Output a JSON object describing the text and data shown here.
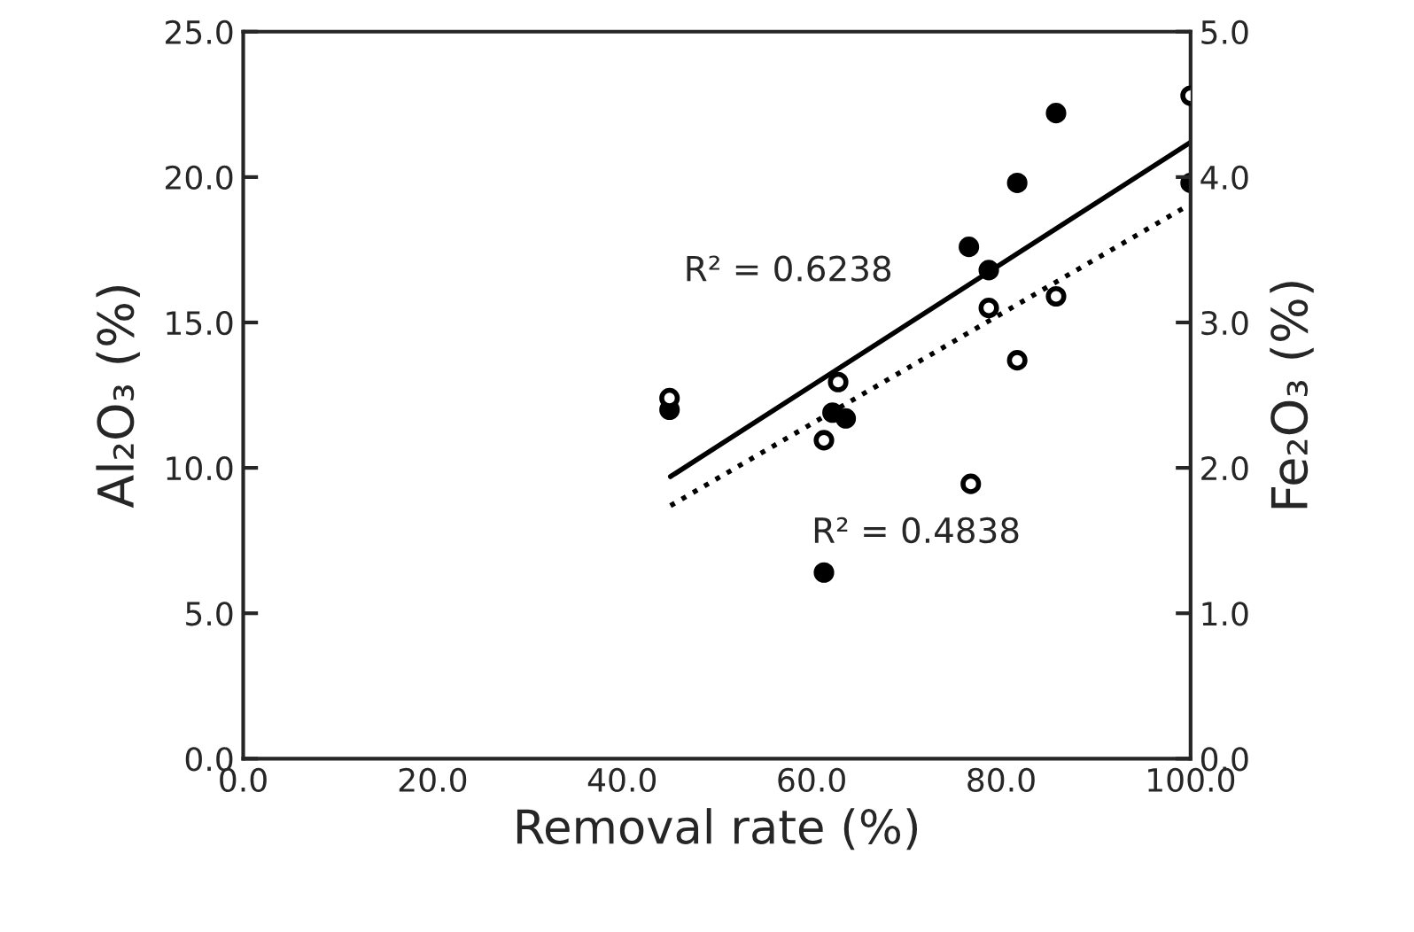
{
  "chart_data": {
    "type": "scatter",
    "xlabel": "Removal rate (%)",
    "ylabel": "Al₂O₃ (%)",
    "y2label": "Fe₂O₃ (%)",
    "xlim": [
      0,
      100
    ],
    "ylim": [
      0,
      25
    ],
    "y2lim": [
      0,
      5
    ],
    "xticks": [
      {
        "value": 0,
        "label": "0.0"
      },
      {
        "value": 20,
        "label": "20.0"
      },
      {
        "value": 40,
        "label": "40.0"
      },
      {
        "value": 60,
        "label": "60.0"
      },
      {
        "value": 80,
        "label": "80.0"
      },
      {
        "value": 100,
        "label": "100.0"
      }
    ],
    "yticks": [
      {
        "value": 0,
        "label": "0.0"
      },
      {
        "value": 5,
        "label": "5.0"
      },
      {
        "value": 10,
        "label": "10.0"
      },
      {
        "value": 15,
        "label": "15.0"
      },
      {
        "value": 20,
        "label": "20.0"
      },
      {
        "value": 25,
        "label": "25.0"
      }
    ],
    "y2ticks": [
      {
        "value": 0,
        "label": "0.0"
      },
      {
        "value": 1,
        "label": "1.0"
      },
      {
        "value": 2,
        "label": "2.0"
      },
      {
        "value": 3,
        "label": "3.0"
      },
      {
        "value": 4,
        "label": "4.0"
      },
      {
        "value": 5,
        "label": "5.0"
      }
    ],
    "grid": false,
    "legend": false,
    "series": [
      {
        "marker": "circle",
        "color": "#000000",
        "x": [
          45.0,
          61.3,
          62.2,
          63.6,
          76.6,
          78.7,
          81.7,
          85.8,
          100
        ],
        "values": [
          12.0,
          6.4,
          11.9,
          11.7,
          17.6,
          16.8,
          19.8,
          22.2,
          19.8
        ]
      },
      {
        "marker": "circle",
        "axis": "y2",
        "color": "#000000",
        "x": [
          45.0,
          62.8,
          61.3,
          76.8,
          78.7,
          81.7,
          85.8,
          100
        ],
        "values": [
          2.48,
          2.59,
          2.19,
          1.89,
          3.1,
          2.74,
          3.18,
          4.56
        ]
      },
      {
        "type": "line",
        "marker": "none",
        "color": "#000000",
        "line_style": "solid",
        "x": [
          45.1,
          100
        ],
        "values": [
          9.7,
          21.2
        ]
      },
      {
        "type": "line",
        "marker": "none",
        "axis": "y2",
        "color": "#000000",
        "line_style": "dotted",
        "x": [
          45.1,
          99.6
        ],
        "values": [
          1.74,
          3.8
        ]
      }
    ],
    "annotations": [
      "R² = 0.6238",
      "R² = 0.4838"
    ]
  }
}
